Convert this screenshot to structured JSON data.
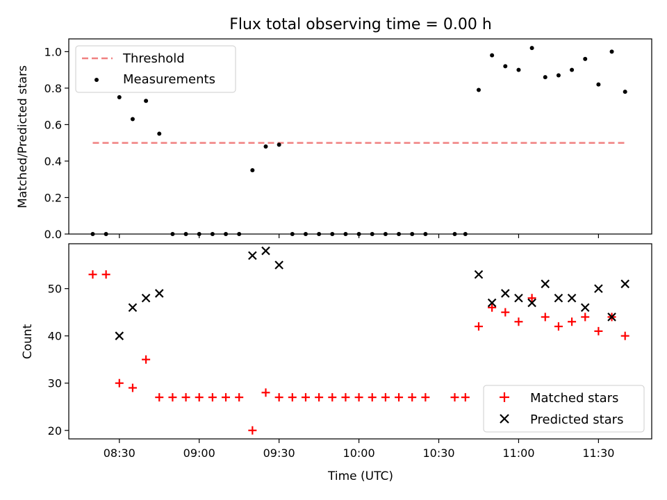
{
  "chart_data": [
    {
      "type": "scatter",
      "title": "Flux total observing time = 0.00 h",
      "ylabel": "Matched/Predicted stars",
      "ylim": [
        0,
        1.07
      ],
      "yticks": [
        "0.0",
        "0.2",
        "0.4",
        "0.6",
        "0.8",
        "1.0"
      ],
      "threshold": {
        "name": "Threshold",
        "value": 0.5,
        "x_range": [
          "08:20",
          "11:40"
        ],
        "color": "#f08080"
      },
      "series": [
        {
          "name": "Measurements",
          "marker": "dot",
          "color": "#000000",
          "points": [
            [
              "08:20",
              0.0
            ],
            [
              "08:25",
              0.0
            ],
            [
              "08:30",
              0.75
            ],
            [
              "08:35",
              0.63
            ],
            [
              "08:40",
              0.73
            ],
            [
              "08:45",
              0.55
            ],
            [
              "08:50",
              0.0
            ],
            [
              "08:55",
              0.0
            ],
            [
              "09:00",
              0.0
            ],
            [
              "09:05",
              0.0
            ],
            [
              "09:10",
              0.0
            ],
            [
              "09:15",
              0.0
            ],
            [
              "09:20",
              0.35
            ],
            [
              "09:25",
              0.48
            ],
            [
              "09:30",
              0.49
            ],
            [
              "09:35",
              0.0
            ],
            [
              "09:40",
              0.0
            ],
            [
              "09:45",
              0.0
            ],
            [
              "09:50",
              0.0
            ],
            [
              "09:55",
              0.0
            ],
            [
              "10:00",
              0.0
            ],
            [
              "10:05",
              0.0
            ],
            [
              "10:10",
              0.0
            ],
            [
              "10:15",
              0.0
            ],
            [
              "10:20",
              0.0
            ],
            [
              "10:25",
              0.0
            ],
            [
              "10:36",
              0.0
            ],
            [
              "10:40",
              0.0
            ],
            [
              "10:45",
              0.79
            ],
            [
              "10:50",
              0.98
            ],
            [
              "10:55",
              0.92
            ],
            [
              "11:00",
              0.9
            ],
            [
              "11:05",
              1.02
            ],
            [
              "11:10",
              0.86
            ],
            [
              "11:15",
              0.87
            ],
            [
              "11:20",
              0.9
            ],
            [
              "11:25",
              0.96
            ],
            [
              "11:30",
              0.82
            ],
            [
              "11:35",
              1.0
            ],
            [
              "11:40",
              0.78
            ]
          ]
        }
      ],
      "legend_position": "top-left"
    },
    {
      "type": "scatter",
      "xlabel": "Time (UTC)",
      "ylabel": "Count",
      "ylim": [
        18.2,
        59.5
      ],
      "yticks": [
        "20",
        "30",
        "40",
        "50"
      ],
      "xlim": [
        "08:11",
        "11:50"
      ],
      "xticks": [
        "08:30",
        "09:00",
        "09:30",
        "10:00",
        "10:30",
        "11:00",
        "11:30"
      ],
      "series": [
        {
          "name": "Matched stars",
          "marker": "plus",
          "color": "#ff0000",
          "points": [
            [
              "08:20",
              53
            ],
            [
              "08:25",
              53
            ],
            [
              "08:30",
              30
            ],
            [
              "08:35",
              29
            ],
            [
              "08:40",
              35
            ],
            [
              "08:45",
              27
            ],
            [
              "08:50",
              27
            ],
            [
              "08:55",
              27
            ],
            [
              "09:00",
              27
            ],
            [
              "09:05",
              27
            ],
            [
              "09:10",
              27
            ],
            [
              "09:15",
              27
            ],
            [
              "09:20",
              20
            ],
            [
              "09:25",
              28
            ],
            [
              "09:30",
              27
            ],
            [
              "09:35",
              27
            ],
            [
              "09:40",
              27
            ],
            [
              "09:45",
              27
            ],
            [
              "09:50",
              27
            ],
            [
              "09:55",
              27
            ],
            [
              "10:00",
              27
            ],
            [
              "10:05",
              27
            ],
            [
              "10:10",
              27
            ],
            [
              "10:15",
              27
            ],
            [
              "10:20",
              27
            ],
            [
              "10:25",
              27
            ],
            [
              "10:36",
              27
            ],
            [
              "10:40",
              27
            ],
            [
              "10:45",
              42
            ],
            [
              "10:50",
              46
            ],
            [
              "10:55",
              45
            ],
            [
              "11:00",
              43
            ],
            [
              "11:05",
              48
            ],
            [
              "11:10",
              44
            ],
            [
              "11:15",
              42
            ],
            [
              "11:20",
              43
            ],
            [
              "11:25",
              44
            ],
            [
              "11:30",
              41
            ],
            [
              "11:35",
              44
            ],
            [
              "11:40",
              40
            ]
          ]
        },
        {
          "name": "Predicted stars",
          "marker": "x",
          "color": "#000000",
          "points": [
            [
              "08:30",
              40
            ],
            [
              "08:35",
              46
            ],
            [
              "08:40",
              48
            ],
            [
              "08:45",
              49
            ],
            [
              "09:20",
              57
            ],
            [
              "09:25",
              58
            ],
            [
              "09:30",
              55
            ],
            [
              "10:45",
              53
            ],
            [
              "10:50",
              47
            ],
            [
              "10:55",
              49
            ],
            [
              "11:00",
              48
            ],
            [
              "11:05",
              47
            ],
            [
              "11:10",
              51
            ],
            [
              "11:15",
              48
            ],
            [
              "11:20",
              48
            ],
            [
              "11:25",
              46
            ],
            [
              "11:30",
              50
            ],
            [
              "11:35",
              44
            ],
            [
              "11:40",
              51
            ]
          ]
        }
      ],
      "legend_position": "bottom-right"
    }
  ]
}
